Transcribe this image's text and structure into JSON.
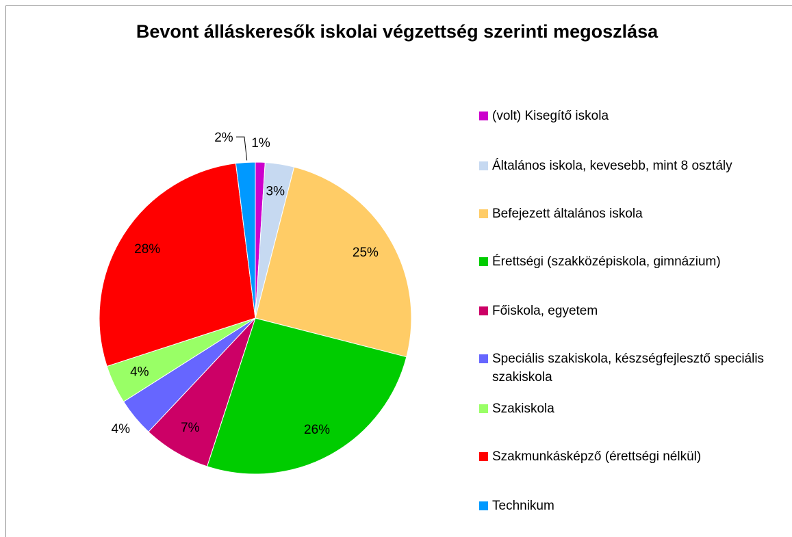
{
  "chart_data": {
    "type": "pie",
    "title": "Bevont álláskeresők iskolai végzettség szerinti megoszlása",
    "categories": [
      "(volt) Kisegítő iskola",
      "Általános iskola, kevesebb, mint 8 osztály",
      "Befejezett általános iskola",
      "Érettségi (szakközépiskola, gimnázium)",
      "Főiskola, egyetem",
      "Speciális szakiskola, készségfejlesztő speciális szakiskola",
      "Szakiskola",
      "Szakmunkásképző (érettségi nélkül)",
      "Technikum"
    ],
    "values": [
      1,
      3,
      25,
      26,
      7,
      4,
      4,
      28,
      2
    ],
    "value_labels": [
      "1%",
      "3%",
      "25%",
      "26%",
      "7%",
      "4%",
      "4%",
      "28%",
      "2%"
    ],
    "colors": [
      "#cc00cc",
      "#c6d9f1",
      "#ffcc66",
      "#00cc00",
      "#cc0066",
      "#6666ff",
      "#99ff66",
      "#ff0000",
      "#0099ff"
    ],
    "legend": "right"
  }
}
